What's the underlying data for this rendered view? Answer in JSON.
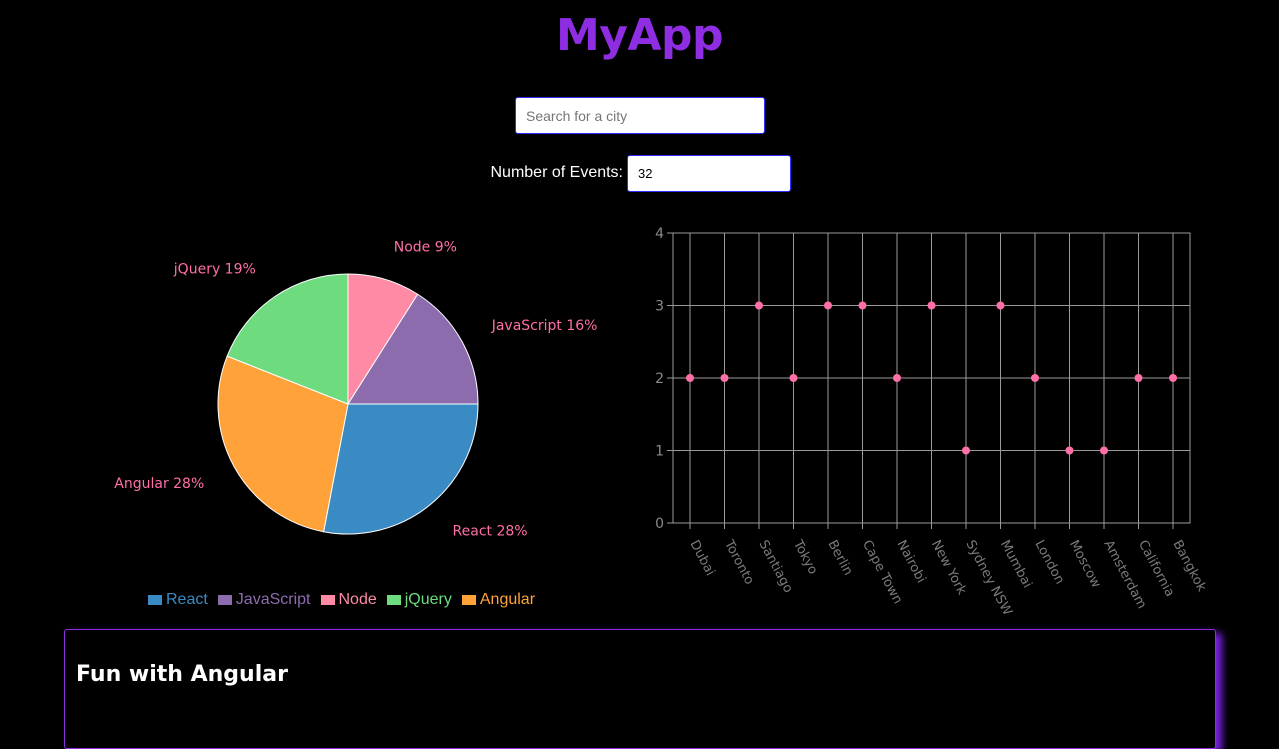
{
  "app": {
    "title": "MyApp"
  },
  "search": {
    "placeholder": "Search for a city",
    "value": ""
  },
  "events": {
    "label": "Number of Events:",
    "value": "32"
  },
  "card": {
    "title": "Fun with Angular"
  },
  "colors": {
    "title": "#8e2de2",
    "slice_label": "#ff6fa8",
    "scatter_point": "#ff6fa8"
  },
  "chart_data": [
    {
      "type": "pie",
      "slices": [
        {
          "label": "React",
          "value": 28,
          "color": "#3a8bc4",
          "text": "React 28%"
        },
        {
          "label": "Angular",
          "value": 28,
          "color": "#ffa23a",
          "text": "Angular 28%"
        },
        {
          "label": "jQuery",
          "value": 19,
          "color": "#6edb7f",
          "text": "jQuery 19%"
        },
        {
          "label": "Node",
          "value": 9,
          "color": "#ff8aa5",
          "text": "Node 9%"
        },
        {
          "label": "JavaScript",
          "value": 16,
          "color": "#8d6cae",
          "text": "JavaScript 16%"
        }
      ],
      "legend": [
        {
          "label": "React",
          "color": "#3a8bc4"
        },
        {
          "label": "JavaScript",
          "color": "#8d6cae"
        },
        {
          "label": "Node",
          "color": "#ff8aa5"
        },
        {
          "label": "jQuery",
          "color": "#6edb7f"
        },
        {
          "label": "Angular",
          "color": "#ffa23a"
        }
      ],
      "legend_position": "bottom"
    },
    {
      "type": "scatter",
      "categories": [
        "Dubai",
        "Toronto",
        "Santiago",
        "Tokyo",
        "Berlin",
        "Cape Town",
        "Nairobi",
        "New York",
        "Sydney NSW",
        "Mumbai",
        "London",
        "Moscow",
        "Amsterdam",
        "California",
        "Bangkok"
      ],
      "values": [
        2,
        2,
        3,
        2,
        3,
        3,
        2,
        3,
        1,
        3,
        2,
        1,
        1,
        2,
        2
      ],
      "yticks": [
        "0",
        "1",
        "2",
        "3",
        "4"
      ],
      "ylim": [
        0,
        4
      ],
      "grid": true
    }
  ]
}
